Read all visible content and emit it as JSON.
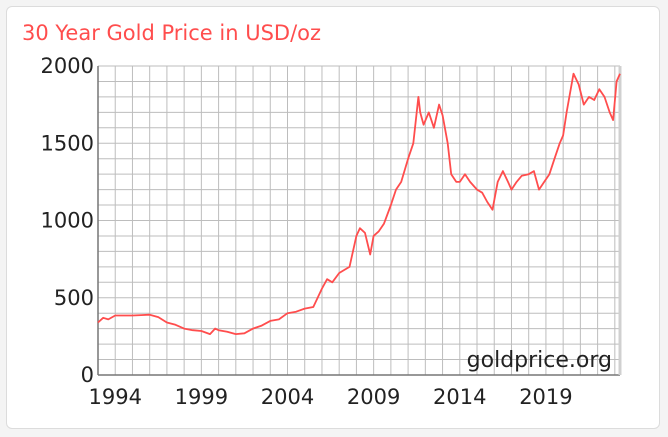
{
  "chart_data": {
    "type": "line",
    "title": "30 Year Gold Price in USD/oz",
    "watermark": "goldprice.org",
    "xlabel": "",
    "ylabel": "",
    "xlim": [
      1993.0,
      2023.3
    ],
    "ylim": [
      0,
      2000
    ],
    "xticks": [
      1994,
      1999,
      2004,
      2009,
      2014,
      2019
    ],
    "xtick_labels": [
      "1994",
      "1999",
      "2004",
      "2009",
      "2014",
      "2019"
    ],
    "yticks": [
      0,
      500,
      1000,
      1500,
      2000
    ],
    "ytick_labels": [
      "0",
      "500",
      "1000",
      "1500",
      "2000"
    ],
    "grid": true,
    "legend": "none",
    "colors": {
      "line": "#ff4d4d",
      "title": "#ff4d4d",
      "grid": "#bdbdbd",
      "axis": "#777777"
    },
    "series": [
      {
        "x": [
          1993.0,
          1993.3,
          1993.6,
          1994.0,
          1994.5,
          1995.0,
          1995.5,
          1996.0,
          1996.5,
          1997.0,
          1997.5,
          1998.0,
          1998.5,
          1999.0,
          1999.5,
          1999.8,
          2000.0,
          2000.5,
          2001.0,
          2001.5,
          2002.0,
          2002.5,
          2003.0,
          2003.5,
          2004.0,
          2004.5,
          2005.0,
          2005.5,
          2006.0,
          2006.3,
          2006.6,
          2007.0,
          2007.3,
          2007.6,
          2008.0,
          2008.2,
          2008.5,
          2008.8,
          2009.0,
          2009.3,
          2009.6,
          2010.0,
          2010.3,
          2010.6,
          2011.0,
          2011.3,
          2011.6,
          2011.7,
          2011.9,
          2012.2,
          2012.5,
          2012.8,
          2013.0,
          2013.3,
          2013.5,
          2013.8,
          2014.0,
          2014.3,
          2014.6,
          2015.0,
          2015.3,
          2015.6,
          2015.9,
          2016.2,
          2016.5,
          2016.8,
          2017.0,
          2017.3,
          2017.6,
          2018.0,
          2018.3,
          2018.6,
          2018.9,
          2019.2,
          2019.5,
          2019.8,
          2020.0,
          2020.2,
          2020.6,
          2020.9,
          2021.2,
          2021.5,
          2021.8,
          2022.1,
          2022.4,
          2022.7,
          2022.9,
          2023.1,
          2023.3
        ],
        "values": [
          340,
          370,
          360,
          385,
          385,
          385,
          388,
          390,
          375,
          340,
          325,
          300,
          290,
          285,
          265,
          300,
          290,
          280,
          265,
          270,
          300,
          320,
          350,
          360,
          400,
          410,
          430,
          440,
          560,
          620,
          600,
          660,
          680,
          700,
          900,
          950,
          920,
          780,
          900,
          930,
          980,
          1100,
          1200,
          1250,
          1400,
          1500,
          1800,
          1700,
          1620,
          1700,
          1600,
          1750,
          1680,
          1500,
          1300,
          1250,
          1250,
          1300,
          1250,
          1200,
          1180,
          1120,
          1070,
          1250,
          1320,
          1250,
          1200,
          1250,
          1290,
          1300,
          1320,
          1200,
          1250,
          1300,
          1400,
          1500,
          1550,
          1700,
          1950,
          1880,
          1750,
          1800,
          1780,
          1850,
          1800,
          1700,
          1650,
          1900,
          1950
        ]
      }
    ]
  }
}
